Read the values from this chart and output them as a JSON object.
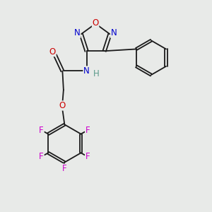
{
  "bg_color": "#e8eae8",
  "bond_color": "#1a1a1a",
  "N_color": "#0000cc",
  "O_color": "#cc0000",
  "F_color": "#cc00cc",
  "H_color": "#5a9a8a",
  "font_size_atom": 8.5,
  "lw": 1.3,
  "xlim": [
    0,
    10
  ],
  "ylim": [
    0,
    10
  ]
}
